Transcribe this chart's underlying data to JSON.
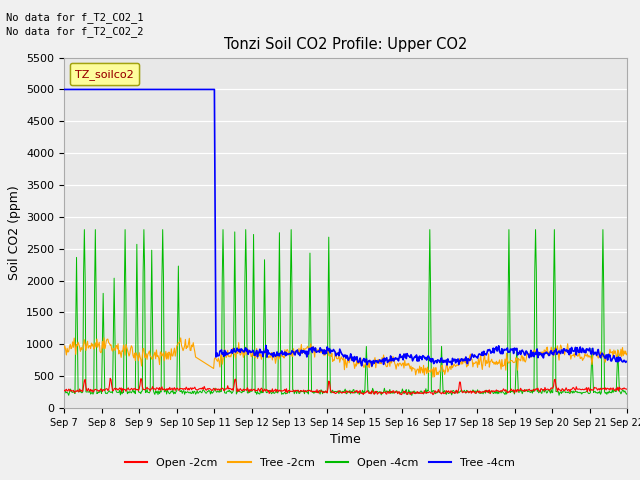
{
  "title": "Tonzi Soil CO2 Profile: Upper CO2",
  "no_data_lines": [
    "No data for f_T2_CO2_1",
    "No data for f_T2_CO2_2"
  ],
  "legend_box_label": "TZ_soilco2",
  "xlabel": "Time",
  "ylabel": "Soil CO2 (ppm)",
  "ylim": [
    0,
    5500
  ],
  "yticks": [
    0,
    500,
    1000,
    1500,
    2000,
    2500,
    3000,
    3500,
    4000,
    4500,
    5000,
    5500
  ],
  "xlim": [
    7,
    22
  ],
  "xtick_positions": [
    7,
    8,
    9,
    10,
    11,
    12,
    13,
    14,
    15,
    16,
    17,
    18,
    19,
    20,
    21,
    22
  ],
  "xtick_labels": [
    "Sep 7",
    "Sep 8",
    "Sep 9",
    "Sep 10",
    "Sep 11",
    "Sep 12",
    "Sep 13",
    "Sep 14",
    "Sep 15",
    "Sep 16",
    "Sep 17",
    "Sep 18",
    "Sep 19",
    "Sep 20",
    "Sep 21",
    "Sep 22"
  ],
  "colors": {
    "red": "#FF0000",
    "orange": "#FFA500",
    "green": "#00BB00",
    "blue": "#0000FF"
  },
  "legend_entries": [
    {
      "label": "Open -2cm",
      "color": "#FF0000"
    },
    {
      "label": "Tree -2cm",
      "color": "#FFA500"
    },
    {
      "label": "Open -4cm",
      "color": "#00BB00"
    },
    {
      "label": "Tree -4cm",
      "color": "#0000FF"
    }
  ],
  "background_color": "#E8E8E8",
  "fig_background": "#F0F0F0",
  "grid_color": "#FFFFFF",
  "blue_flat_value": 5000,
  "blue_drop_day": 11,
  "blue_after_mean": 820
}
